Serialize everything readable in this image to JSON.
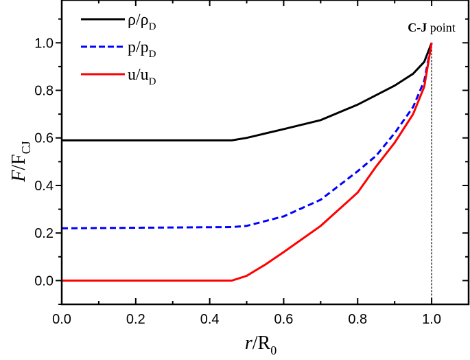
{
  "chart_data": {
    "type": "line",
    "xlabel": {
      "italic": "r",
      "rest": "/R",
      "sub": "0"
    },
    "ylabel": {
      "italic": "F",
      "rest": "/F",
      "sub": "CJ"
    },
    "xlim": [
      0,
      1.1
    ],
    "ylim": [
      -0.1,
      1.18
    ],
    "xticks": [
      "0.0",
      "0.2",
      "0.4",
      "0.6",
      "0.8",
      "1.0"
    ],
    "yticks": [
      "0.0",
      "0.2",
      "0.4",
      "0.6",
      "0.8",
      "1.0"
    ],
    "grid": false,
    "legend_position": "top-left",
    "annotation": {
      "bold": "C-J",
      "rest": " point",
      "x": 1.0
    },
    "series": [
      {
        "name": "ρ/ρ",
        "name_sub": "D",
        "color": "#000000",
        "dash": "solid",
        "x": [
          0,
          0.46,
          0.5,
          0.6,
          0.7,
          0.8,
          0.9,
          0.95,
          0.98,
          1.0
        ],
        "y": [
          0.59,
          0.59,
          0.6,
          0.637,
          0.675,
          0.74,
          0.82,
          0.87,
          0.92,
          1.0
        ]
      },
      {
        "name": "p/p",
        "name_sub": "D",
        "color": "#0000ff",
        "dash": "dashed",
        "x": [
          0,
          0.46,
          0.5,
          0.6,
          0.7,
          0.8,
          0.85,
          0.9,
          0.95,
          0.98,
          1.0
        ],
        "y": [
          0.22,
          0.225,
          0.23,
          0.27,
          0.34,
          0.46,
          0.525,
          0.62,
          0.73,
          0.84,
          1.0
        ]
      },
      {
        "name": "u/u",
        "name_sub": "D",
        "color": "#ff0000",
        "dash": "solid",
        "x": [
          0,
          0.46,
          0.5,
          0.55,
          0.6,
          0.7,
          0.8,
          0.85,
          0.9,
          0.95,
          0.98,
          1.0
        ],
        "y": [
          0,
          0,
          0.02,
          0.067,
          0.12,
          0.23,
          0.37,
          0.48,
          0.58,
          0.7,
          0.815,
          1.0
        ]
      }
    ]
  }
}
